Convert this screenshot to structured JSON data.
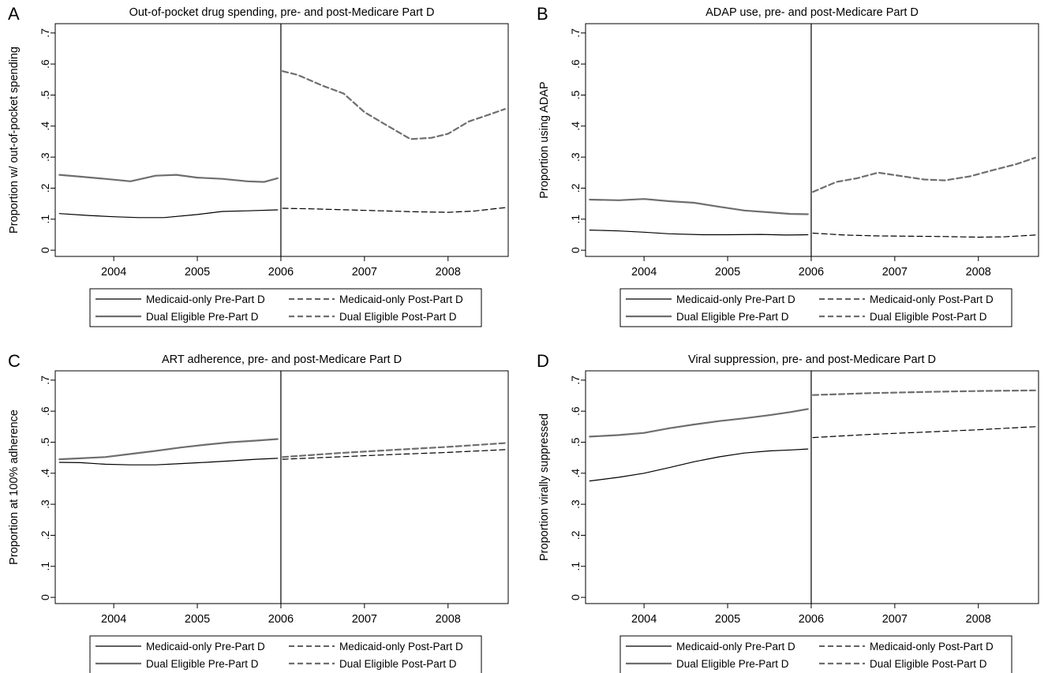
{
  "legend_labels": {
    "medicaid_pre": "Medicaid-only Pre-Part D",
    "medicaid_post": "Medicaid-only Post-Part D",
    "dual_pre": "Dual Eligible Pre-Part D",
    "dual_post": "Dual Eligible Post-Part D"
  },
  "colors": {
    "medicaid": "#000000",
    "dual": "#6e6e6e"
  },
  "chart_data": [
    {
      "panel": "A",
      "type": "line",
      "title": "Out-of-pocket drug spending, pre- and post-Medicare Part D",
      "ylabel": "Proportion w/ out-of-pocket spending",
      "xlabel": "",
      "xlim": [
        2003.3,
        2008.72
      ],
      "ylim": [
        -0.02,
        0.73
      ],
      "xticks": [
        "2004",
        "2005",
        "2006",
        "2007",
        "2008"
      ],
      "yticks": [
        "0",
        ".1",
        ".2",
        ".3",
        ".4",
        ".5",
        ".6",
        ".7"
      ],
      "breakpoint": 2006,
      "grid": false,
      "legend_position": "bottom",
      "series": [
        {
          "key": "medicaid_pre",
          "name": "Medicaid-only Pre-Part D",
          "style": "solid",
          "color": "#000000",
          "x": [
            2003.35,
            2003.7,
            2004.0,
            2004.3,
            2004.6,
            2005.0,
            2005.3,
            2005.6,
            2005.96
          ],
          "y": [
            0.118,
            0.112,
            0.108,
            0.105,
            0.105,
            0.115,
            0.125,
            0.127,
            0.13
          ]
        },
        {
          "key": "medicaid_post",
          "name": "Medicaid-only Post-Part D",
          "style": "dashed",
          "color": "#000000",
          "x": [
            2006.02,
            2006.4,
            2006.8,
            2007.2,
            2007.6,
            2008.0,
            2008.3,
            2008.68
          ],
          "y": [
            0.135,
            0.133,
            0.13,
            0.127,
            0.124,
            0.122,
            0.126,
            0.137
          ]
        },
        {
          "key": "dual_pre",
          "name": "Dual Eligible Pre-Part D",
          "style": "solid",
          "color": "#6e6e6e",
          "x": [
            2003.35,
            2003.6,
            2003.9,
            2004.2,
            2004.5,
            2004.75,
            2005.0,
            2005.3,
            2005.6,
            2005.8,
            2005.96
          ],
          "y": [
            0.243,
            0.237,
            0.23,
            0.222,
            0.24,
            0.243,
            0.234,
            0.23,
            0.222,
            0.22,
            0.232
          ]
        },
        {
          "key": "dual_post",
          "name": "Dual Eligible Post-Part D",
          "style": "dashed",
          "color": "#6e6e6e",
          "x": [
            2006.02,
            2006.2,
            2006.5,
            2006.75,
            2007.0,
            2007.25,
            2007.55,
            2007.8,
            2008.0,
            2008.25,
            2008.5,
            2008.68
          ],
          "y": [
            0.577,
            0.565,
            0.53,
            0.505,
            0.445,
            0.405,
            0.358,
            0.362,
            0.375,
            0.415,
            0.438,
            0.455
          ]
        }
      ]
    },
    {
      "panel": "B",
      "type": "line",
      "title": "ADAP use, pre- and post-Medicare Part D",
      "ylabel": "Proportion using ADAP",
      "xlabel": "",
      "xlim": [
        2003.3,
        2008.72
      ],
      "ylim": [
        -0.02,
        0.73
      ],
      "xticks": [
        "2004",
        "2005",
        "2006",
        "2007",
        "2008"
      ],
      "yticks": [
        "0",
        ".1",
        ".2",
        ".3",
        ".4",
        ".5",
        ".6",
        ".7"
      ],
      "breakpoint": 2006,
      "grid": false,
      "legend_position": "bottom",
      "series": [
        {
          "key": "medicaid_pre",
          "name": "Medicaid-only Pre-Part D",
          "style": "solid",
          "color": "#000000",
          "x": [
            2003.35,
            2003.7,
            2004.0,
            2004.3,
            2004.7,
            2005.0,
            2005.4,
            2005.7,
            2005.96
          ],
          "y": [
            0.065,
            0.062,
            0.058,
            0.053,
            0.05,
            0.05,
            0.051,
            0.049,
            0.05
          ]
        },
        {
          "key": "medicaid_post",
          "name": "Medicaid-only Post-Part D",
          "style": "dashed",
          "color": "#000000",
          "x": [
            2006.02,
            2006.4,
            2006.8,
            2007.2,
            2007.6,
            2008.0,
            2008.3,
            2008.68
          ],
          "y": [
            0.055,
            0.049,
            0.046,
            0.045,
            0.044,
            0.042,
            0.043,
            0.049
          ]
        },
        {
          "key": "dual_pre",
          "name": "Dual Eligible Pre-Part D",
          "style": "solid",
          "color": "#6e6e6e",
          "x": [
            2003.35,
            2003.7,
            2004.0,
            2004.3,
            2004.6,
            2004.9,
            2005.2,
            2005.5,
            2005.75,
            2005.96
          ],
          "y": [
            0.163,
            0.161,
            0.165,
            0.158,
            0.153,
            0.14,
            0.128,
            0.122,
            0.117,
            0.116
          ]
        },
        {
          "key": "dual_post",
          "name": "Dual Eligible Post-Part D",
          "style": "dashed",
          "color": "#6e6e6e",
          "x": [
            2006.02,
            2006.3,
            2006.55,
            2006.8,
            2007.1,
            2007.35,
            2007.6,
            2007.9,
            2008.2,
            2008.45,
            2008.68
          ],
          "y": [
            0.188,
            0.22,
            0.232,
            0.25,
            0.238,
            0.228,
            0.225,
            0.238,
            0.26,
            0.277,
            0.298
          ]
        }
      ]
    },
    {
      "panel": "C",
      "type": "line",
      "title": "ART adherence, pre- and post-Medicare Part D",
      "ylabel": "Proportion at 100% adherence",
      "xlabel": "",
      "xlim": [
        2003.3,
        2008.72
      ],
      "ylim": [
        -0.02,
        0.73
      ],
      "xticks": [
        "2004",
        "2005",
        "2006",
        "2007",
        "2008"
      ],
      "yticks": [
        "0",
        ".1",
        ".2",
        ".3",
        ".4",
        ".5",
        ".6",
        ".7"
      ],
      "breakpoint": 2006,
      "grid": false,
      "legend_position": "bottom",
      "series": [
        {
          "key": "medicaid_pre",
          "name": "Medicaid-only Pre-Part D",
          "style": "solid",
          "color": "#000000",
          "x": [
            2003.35,
            2003.6,
            2003.9,
            2004.2,
            2004.5,
            2004.8,
            2005.1,
            2005.4,
            2005.7,
            2005.96
          ],
          "y": [
            0.435,
            0.434,
            0.429,
            0.427,
            0.427,
            0.431,
            0.435,
            0.44,
            0.445,
            0.448
          ]
        },
        {
          "key": "medicaid_post",
          "name": "Medicaid-only Post-Part D",
          "style": "dashed",
          "color": "#000000",
          "x": [
            2006.02,
            2006.7,
            2007.4,
            2008.0,
            2008.68
          ],
          "y": [
            0.445,
            0.453,
            0.461,
            0.467,
            0.476
          ]
        },
        {
          "key": "dual_pre",
          "name": "Dual Eligible Pre-Part D",
          "style": "solid",
          "color": "#6e6e6e",
          "x": [
            2003.35,
            2003.6,
            2003.9,
            2004.2,
            2004.5,
            2004.8,
            2005.1,
            2005.4,
            2005.7,
            2005.96
          ],
          "y": [
            0.445,
            0.448,
            0.452,
            0.462,
            0.472,
            0.483,
            0.492,
            0.5,
            0.505,
            0.51
          ]
        },
        {
          "key": "dual_post",
          "name": "Dual Eligible Post-Part D",
          "style": "dashed",
          "color": "#6e6e6e",
          "x": [
            2006.02,
            2006.7,
            2007.4,
            2008.0,
            2008.68
          ],
          "y": [
            0.452,
            0.465,
            0.476,
            0.485,
            0.497
          ]
        }
      ]
    },
    {
      "panel": "D",
      "type": "line",
      "title": "Viral suppression, pre- and post-Medicare Part D",
      "ylabel": "Proportion virally suppressed",
      "xlabel": "",
      "xlim": [
        2003.3,
        2008.72
      ],
      "ylim": [
        -0.02,
        0.73
      ],
      "xticks": [
        "2004",
        "2005",
        "2006",
        "2007",
        "2008"
      ],
      "yticks": [
        "0",
        ".1",
        ".2",
        ".3",
        ".4",
        ".5",
        ".6",
        ".7"
      ],
      "breakpoint": 2006,
      "grid": false,
      "legend_position": "bottom",
      "series": [
        {
          "key": "medicaid_pre",
          "name": "Medicaid-only Pre-Part D",
          "style": "solid",
          "color": "#000000",
          "x": [
            2003.35,
            2003.7,
            2004.0,
            2004.3,
            2004.6,
            2004.9,
            2005.2,
            2005.5,
            2005.75,
            2005.96
          ],
          "y": [
            0.375,
            0.387,
            0.4,
            0.418,
            0.437,
            0.453,
            0.465,
            0.472,
            0.475,
            0.478
          ]
        },
        {
          "key": "medicaid_post",
          "name": "Medicaid-only Post-Part D",
          "style": "dashed",
          "color": "#000000",
          "x": [
            2006.02,
            2006.7,
            2007.4,
            2008.0,
            2008.68
          ],
          "y": [
            0.515,
            0.525,
            0.533,
            0.54,
            0.55
          ]
        },
        {
          "key": "dual_pre",
          "name": "Dual Eligible Pre-Part D",
          "style": "solid",
          "color": "#6e6e6e",
          "x": [
            2003.35,
            2003.7,
            2004.0,
            2004.3,
            2004.6,
            2004.9,
            2005.2,
            2005.5,
            2005.75,
            2005.96
          ],
          "y": [
            0.518,
            0.523,
            0.53,
            0.545,
            0.557,
            0.568,
            0.577,
            0.587,
            0.597,
            0.607
          ]
        },
        {
          "key": "dual_post",
          "name": "Dual Eligible Post-Part D",
          "style": "dashed",
          "color": "#6e6e6e",
          "x": [
            2006.02,
            2006.7,
            2007.4,
            2008.0,
            2008.68
          ],
          "y": [
            0.652,
            0.658,
            0.662,
            0.665,
            0.667
          ]
        }
      ]
    }
  ]
}
